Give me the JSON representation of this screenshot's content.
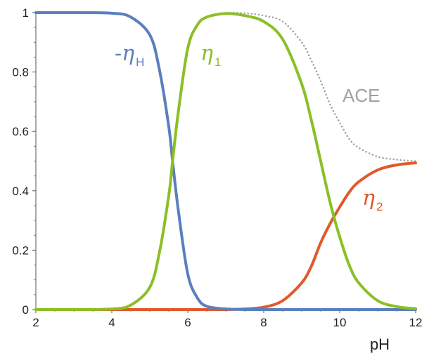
{
  "chart_data": {
    "type": "line",
    "title": "",
    "xlabel": "pH",
    "ylabel": "",
    "xlim": [
      2,
      12
    ],
    "ylim": [
      0,
      1
    ],
    "xticks": [
      "2",
      "4",
      "6",
      "8",
      "10",
      "12"
    ],
    "yticks": [
      "0",
      "0.2",
      "0.4",
      "0.6",
      "0.8",
      "1"
    ],
    "grid": false,
    "legend": "inline labels",
    "x": [
      2,
      3,
      4,
      4.5,
      5,
      5.25,
      5.5,
      5.6,
      5.75,
      6,
      6.25,
      6.5,
      7,
      7.5,
      8,
      8.5,
      9,
      9.25,
      9.5,
      9.75,
      10,
      10.25,
      10.5,
      11,
      11.5,
      12
    ],
    "series": [
      {
        "key": "neg_eta_h",
        "label_prefix": "-η",
        "label_sub": "H",
        "color": "#5a7fbf",
        "style": "solid",
        "values": [
          1.0,
          1.0,
          0.998,
          0.985,
          0.925,
          0.81,
          0.616,
          0.5,
          0.335,
          0.12,
          0.04,
          0.011,
          0.002,
          0.0,
          0.0,
          0.0,
          0.0,
          0.0,
          0.0,
          0.0,
          0.0,
          0.0,
          0.0,
          0.0,
          0.0,
          0.0
        ]
      },
      {
        "key": "eta_1",
        "label_prefix": "η",
        "label_sub": "1",
        "color": "#8cbf26",
        "style": "solid",
        "values": [
          0.0,
          0.0,
          0.002,
          0.015,
          0.075,
          0.19,
          0.384,
          0.5,
          0.665,
          0.88,
          0.958,
          0.985,
          0.997,
          0.99,
          0.97,
          0.91,
          0.76,
          0.64,
          0.5,
          0.36,
          0.245,
          0.15,
          0.09,
          0.03,
          0.01,
          0.003
        ]
      },
      {
        "key": "eta_2",
        "label_prefix": "η",
        "label_sub": "2",
        "color": "#e05a2b",
        "style": "solid",
        "values": [
          0.0,
          0.0,
          0.0,
          0.0,
          0.0,
          0.0,
          0.0,
          0.0,
          0.0,
          0.0,
          0.0,
          0.0,
          0.0,
          0.002,
          0.008,
          0.03,
          0.09,
          0.145,
          0.225,
          0.29,
          0.345,
          0.395,
          0.43,
          0.47,
          0.487,
          0.494
        ]
      },
      {
        "key": "ace",
        "label_plain": "ACE",
        "color": "#a0a0a0",
        "style": "dotted",
        "values": [
          0.0,
          0.0,
          0.002,
          0.015,
          0.075,
          0.19,
          0.384,
          0.5,
          0.665,
          0.88,
          0.958,
          0.985,
          0.999,
          0.998,
          0.99,
          0.97,
          0.9,
          0.84,
          0.77,
          0.69,
          0.63,
          0.575,
          0.545,
          0.515,
          0.505,
          0.5
        ]
      }
    ]
  }
}
